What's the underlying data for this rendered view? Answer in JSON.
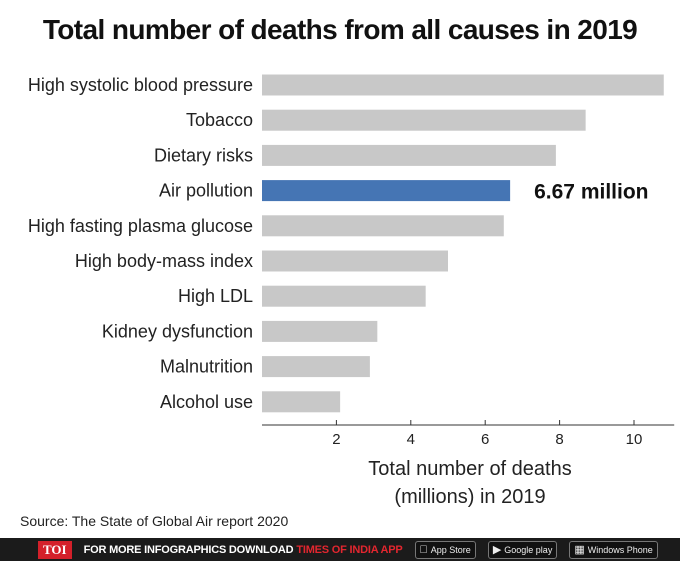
{
  "chart_data": {
    "type": "bar",
    "orientation": "horizontal",
    "title": "Total number of deaths from all causes in 2019",
    "categories": [
      "High systolic blood pressure",
      "Tobacco",
      "Dietary risks",
      "Air pollution",
      "High fasting plasma glucose",
      "High body-mass index",
      "High LDL",
      "Kidney dysfunction",
      "Malnutrition",
      "Alcohol use"
    ],
    "values": [
      10.8,
      8.7,
      7.9,
      6.67,
      6.5,
      5.0,
      4.4,
      3.1,
      2.9,
      2.1
    ],
    "highlight_index": 3,
    "highlight_label": "6.67 million",
    "xlabel_line1": "Total number of deaths",
    "xlabel_line2": "(millions) in 2019",
    "xticks": [
      2,
      4,
      6,
      8,
      10
    ],
    "xlim": [
      0,
      11
    ],
    "grid": false,
    "colors": {
      "bar": "#c8c8c8",
      "highlight": "#4575b4"
    }
  },
  "source": "Source: The State of Global Air report 2020",
  "footer": {
    "logo": "TOI",
    "promo": "FOR MORE  INFOGRAPHICS DOWNLOAD",
    "promo_brand": "TIMES OF INDIA  APP",
    "app_store": "App Store",
    "google_play": "Google play",
    "windows_phone": "Windows Phone"
  }
}
